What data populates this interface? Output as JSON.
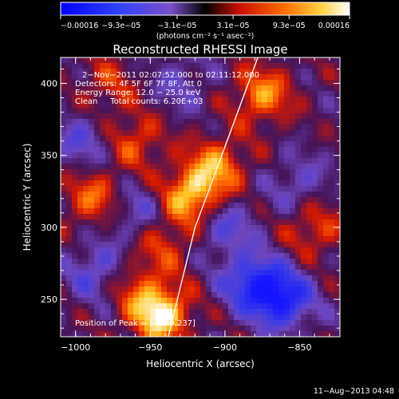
{
  "chart_data": {
    "type": "heatmap",
    "title": "Reconstructed RHESSI Image",
    "xlabel": "Heliocentric X (arcsec)",
    "ylabel": "Heliocentric Y (arcsec)",
    "xlim": [
      -1010,
      -823
    ],
    "ylim": [
      224,
      418
    ],
    "x_ticks": [
      {
        "value": -1000,
        "label": "−1000"
      },
      {
        "value": -950,
        "label": "−950"
      },
      {
        "value": -900,
        "label": "−900"
      },
      {
        "value": -850,
        "label": "−850"
      }
    ],
    "y_ticks": [
      {
        "value": 250,
        "label": "250"
      },
      {
        "value": 300,
        "label": "300"
      },
      {
        "value": 350,
        "label": "350"
      },
      {
        "value": 400,
        "label": "400"
      }
    ],
    "colorbar": {
      "range": [
        -0.00016,
        0.00016
      ],
      "tick_values": [
        -0.00016,
        -9.3e-05,
        -3.1e-05,
        3.1e-05,
        9.3e-05,
        0.00016
      ],
      "tick_labels": [
        "−0.00016",
        "−9.3e−05",
        "−3.1e−05",
        "3.1e−05",
        "9.3e−05",
        "0.00016"
      ],
      "unit_label": "(photons cm⁻² s⁻¹ asec⁻²)"
    },
    "info_lines": [
      "2−Nov−2011 02:07:52.000 to 02:11:12.000",
      "Detectors: 4F 5F 6F 7F 8F, Att 0",
      "Energy Range: 12.0 − 25.0 keV",
      "Clean     Total counts: 6.20E+03"
    ],
    "peak_label": "Position of Peak = [−939,237]",
    "peak": [
      -939,
      237
    ],
    "limb_curve": [
      [
        -938,
        224
      ],
      [
        -920,
        300
      ],
      [
        -895,
        370
      ],
      [
        -878,
        418
      ]
    ],
    "sources": [
      {
        "x": -944,
        "y": 240,
        "value": 1.0
      },
      {
        "x": -922,
        "y": 322,
        "value": 0.8
      },
      {
        "x": -905,
        "y": 343,
        "value": 0.6
      },
      {
        "x": -875,
        "y": 392,
        "value": 0.65
      },
      {
        "x": -988,
        "y": 320,
        "value": 0.55
      },
      {
        "x": -960,
        "y": 360,
        "value": 0.45
      },
      {
        "x": -940,
        "y": 290,
        "value": 0.4
      },
      {
        "x": -978,
        "y": 398,
        "value": 0.35
      },
      {
        "x": -840,
        "y": 300,
        "value": 0.45
      },
      {
        "x": -962,
        "y": 262,
        "value": 0.35
      },
      {
        "x": -882,
        "y": 262,
        "value": -0.7
      },
      {
        "x": -862,
        "y": 250,
        "value": -0.9
      },
      {
        "x": -985,
        "y": 270,
        "value": -0.5
      },
      {
        "x": -960,
        "y": 310,
        "value": -0.4
      },
      {
        "x": -900,
        "y": 300,
        "value": -0.45
      },
      {
        "x": -995,
        "y": 360,
        "value": -0.4
      },
      {
        "x": -850,
        "y": 330,
        "value": -0.35
      },
      {
        "x": -930,
        "y": 400,
        "value": -0.3
      }
    ]
  },
  "footer": {
    "date": "11−Aug−2013 04:48"
  }
}
